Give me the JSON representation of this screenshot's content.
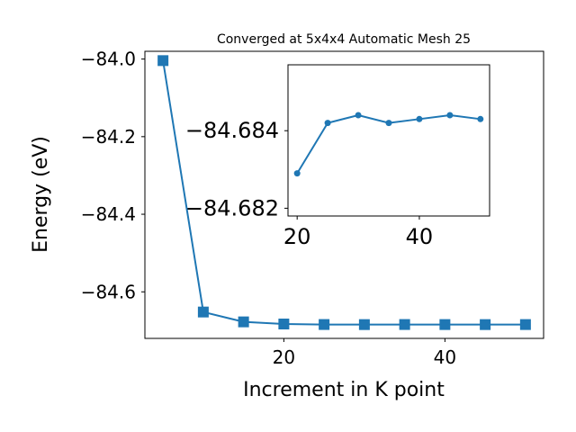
{
  "chart_data": [
    {
      "type": "line",
      "title": "Converged at 5x4x4 Automatic Mesh 25",
      "xlabel": "Increment in K point",
      "ylabel": "Energy (eV)",
      "x": [
        5,
        10,
        15,
        20,
        25,
        30,
        35,
        40,
        45,
        50
      ],
      "series": [
        {
          "marker": "square",
          "color": "#1f77b4",
          "values": [
            -84.004,
            -84.652,
            -84.6774,
            -84.6829,
            -84.6842,
            -84.6844,
            -84.6842,
            -84.6843,
            -84.6844,
            -84.6843
          ]
        }
      ],
      "xlim": [
        2.75,
        52.25
      ],
      "ylim": [
        -84.72,
        -83.98
      ],
      "x_ticks": [
        20,
        40
      ],
      "x_tick_labels": [
        "20",
        "40"
      ],
      "y_ticks": [
        -84.0,
        -84.2,
        -84.4,
        -84.6
      ],
      "y_tick_labels": [
        "−84.0",
        "−84.2",
        "−84.4",
        "−84.6"
      ],
      "grid": false,
      "legend": "none"
    },
    {
      "type": "line",
      "role": "inset",
      "x": [
        20,
        25,
        30,
        35,
        40,
        45,
        50
      ],
      "series": [
        {
          "marker": "circle",
          "color": "#1f77b4",
          "values": [
            -84.6829,
            -84.6842,
            -84.6844,
            -84.6842,
            -84.6843,
            -84.6844,
            -84.6843
          ]
        }
      ],
      "xlim": [
        18.5,
        51.5
      ],
      "ylim": [
        -84.6818,
        -84.6857
      ],
      "x_ticks": [
        20,
        40
      ],
      "x_tick_labels": [
        "20",
        "40"
      ],
      "y_ticks": [
        -84.684,
        -84.682
      ],
      "y_tick_labels": [
        "−84.684",
        "−84.682"
      ],
      "grid": false
    }
  ]
}
